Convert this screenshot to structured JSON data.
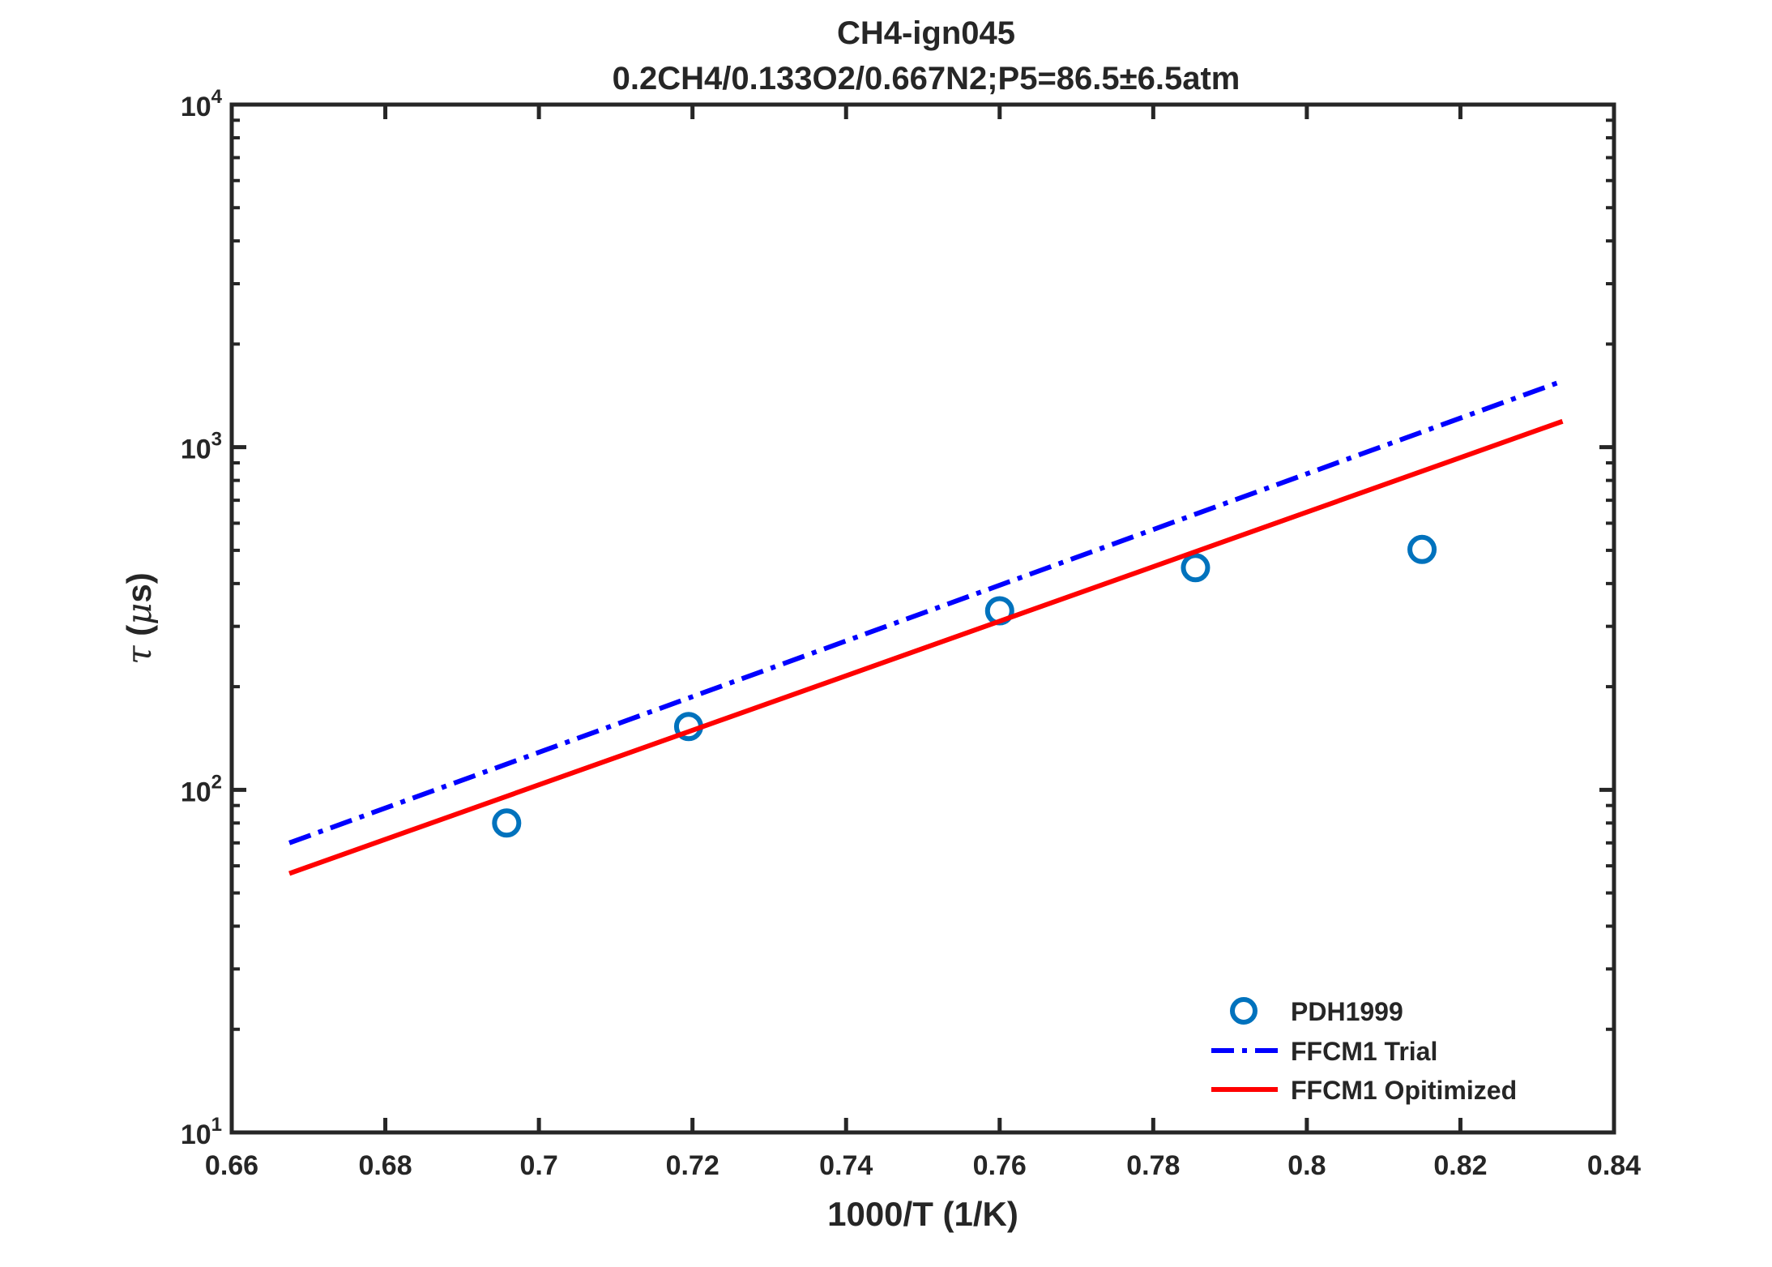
{
  "chart_data": {
    "type": "scatter",
    "title": "CH4-ign045",
    "subtitle": "0.2CH4/0.133O2/0.667N2;P5=86.5±6.5atm",
    "xlabel": "1000/T (1/K)",
    "ylabel_symbol": "τ",
    "ylabel_unit_mu": "μ",
    "ylabel_unit": "s",
    "xlim": [
      0.66,
      0.84
    ],
    "ylim": [
      10,
      10000
    ],
    "yscale": "log",
    "xticks": [
      0.66,
      0.68,
      0.7,
      0.72,
      0.74,
      0.76,
      0.78,
      0.8,
      0.82,
      0.84
    ],
    "xtick_labels": [
      "0.66",
      "0.68",
      "0.7",
      "0.72",
      "0.74",
      "0.76",
      "0.78",
      "0.8",
      "0.82",
      "0.84"
    ],
    "ytick_base": "10",
    "yticks": [
      10,
      100,
      1000,
      10000
    ],
    "ytick_exponents": [
      "1",
      "2",
      "3",
      "4"
    ],
    "grid": false,
    "legend_position": "bottom-right",
    "series": [
      {
        "name": "PDH1999",
        "kind": "markers",
        "color": "#0072BD",
        "x": [
          0.6958,
          0.7195,
          0.76,
          0.7855,
          0.815
        ],
        "y": [
          80,
          153,
          333,
          445,
          503
        ]
      },
      {
        "name": "FFCM1 Trial",
        "kind": "dashdot-line",
        "color": "#0000FF",
        "x": [
          0.6675,
          0.8333
        ],
        "y": [
          70,
          1560
        ]
      },
      {
        "name": "FFCM1 Opitimized",
        "kind": "solid-line",
        "color": "#FF0000",
        "x": [
          0.6675,
          0.8333
        ],
        "y": [
          57,
          1190
        ]
      }
    ]
  }
}
